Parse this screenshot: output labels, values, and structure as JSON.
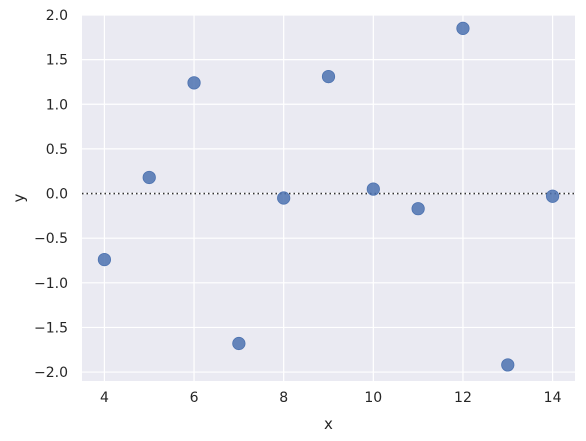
{
  "chart_data": {
    "type": "scatter",
    "title": "",
    "xlabel": "x",
    "ylabel": "y",
    "xlim": [
      3.5,
      14.5
    ],
    "ylim": [
      -2.1,
      2.0
    ],
    "xticks": [
      4,
      6,
      8,
      10,
      12,
      14
    ],
    "xtick_labels": [
      "4",
      "6",
      "8",
      "10",
      "12",
      "14"
    ],
    "yticks": [
      -2.0,
      -1.5,
      -1.0,
      -0.5,
      0.0,
      0.5,
      1.0,
      1.5,
      2.0
    ],
    "ytick_labels": [
      "−2.0",
      "−1.5",
      "−1.0",
      "−0.5",
      "0.0",
      "0.5",
      "1.0",
      "1.5",
      "2.0"
    ],
    "grid": true,
    "reference_line": {
      "y": 0,
      "style": "dotted"
    },
    "series": [
      {
        "x": [
          4,
          5,
          6,
          7,
          8,
          9,
          10,
          11,
          12,
          13,
          14
        ],
        "y": [
          -0.74,
          0.18,
          1.24,
          -1.68,
          -0.05,
          1.31,
          0.05,
          -0.17,
          1.85,
          -1.92,
          -0.03
        ],
        "color": "#4c72b0"
      }
    ],
    "colors": {
      "background": "#eaeaf2",
      "grid": "#ffffff",
      "marker": "#4c72b0",
      "text": "#262626"
    }
  }
}
